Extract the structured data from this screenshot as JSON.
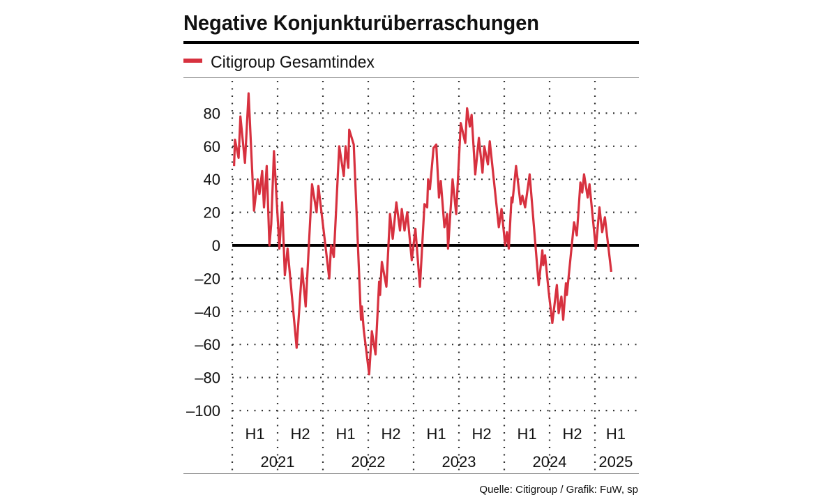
{
  "chart_data": {
    "type": "line",
    "title": "Negative Konjunkturüberraschungen",
    "source": "Quelle: Citigroup / Grafik: FuW, sp",
    "legend_position": "top-left",
    "grid": true,
    "colors": {
      "series": "#d7313f",
      "zero_line": "#000000",
      "grid": "#333333"
    },
    "ylim": [
      -100,
      80
    ],
    "y_ticks": [
      80,
      60,
      40,
      20,
      0,
      -20,
      -40,
      -60,
      -80,
      -100
    ],
    "y_tick_labels": [
      "80",
      "60",
      "40",
      "20",
      "0",
      "–20",
      "–40",
      "–60",
      "–80",
      "–100"
    ],
    "xlim": [
      2021.0,
      2025.46
    ],
    "x_boundaries": [
      2021.0,
      2021.5,
      2022.0,
      2022.5,
      2023.0,
      2023.5,
      2024.0,
      2024.5,
      2025.0
    ],
    "half_year_labels": [
      {
        "label": "H1",
        "center": 2021.25
      },
      {
        "label": "H2",
        "center": 2021.75
      },
      {
        "label": "H1",
        "center": 2022.25
      },
      {
        "label": "H2",
        "center": 2022.75
      },
      {
        "label": "H1",
        "center": 2023.25
      },
      {
        "label": "H2",
        "center": 2023.75
      },
      {
        "label": "H1",
        "center": 2024.25
      },
      {
        "label": "H2",
        "center": 2024.75
      },
      {
        "label": "H1",
        "center": 2025.23
      }
    ],
    "year_labels": [
      {
        "label": "2021",
        "center": 2021.5
      },
      {
        "label": "2022",
        "center": 2022.5
      },
      {
        "label": "2023",
        "center": 2023.5
      },
      {
        "label": "2024",
        "center": 2024.5
      },
      {
        "label": "2025",
        "center": 2025.23
      }
    ],
    "series": [
      {
        "name": "Citigroup Gesamtindex",
        "points": [
          [
            2021.02,
            48
          ],
          [
            2021.03,
            64
          ],
          [
            2021.07,
            53
          ],
          [
            2021.09,
            78
          ],
          [
            2021.14,
            50
          ],
          [
            2021.18,
            92
          ],
          [
            2021.24,
            21
          ],
          [
            2021.28,
            40
          ],
          [
            2021.3,
            31
          ],
          [
            2021.33,
            45
          ],
          [
            2021.35,
            23
          ],
          [
            2021.38,
            48
          ],
          [
            2021.41,
            0
          ],
          [
            2021.43,
            13
          ],
          [
            2021.46,
            57
          ],
          [
            2021.52,
            -2
          ],
          [
            2021.55,
            26
          ],
          [
            2021.58,
            -18
          ],
          [
            2021.61,
            -2
          ],
          [
            2021.71,
            -62
          ],
          [
            2021.77,
            -14
          ],
          [
            2021.81,
            -37
          ],
          [
            2021.88,
            37
          ],
          [
            2021.93,
            20
          ],
          [
            2021.95,
            36
          ],
          [
            2022.07,
            -20
          ],
          [
            2022.09,
            0
          ],
          [
            2022.12,
            -7
          ],
          [
            2022.18,
            60
          ],
          [
            2022.23,
            42
          ],
          [
            2022.25,
            60
          ],
          [
            2022.28,
            47
          ],
          [
            2022.29,
            70
          ],
          [
            2022.34,
            61
          ],
          [
            2022.42,
            -45
          ],
          [
            2022.43,
            -37
          ],
          [
            2022.45,
            -51
          ],
          [
            2022.51,
            -78
          ],
          [
            2022.54,
            -52
          ],
          [
            2022.58,
            -66
          ],
          [
            2022.62,
            -22
          ],
          [
            2022.63,
            -30
          ],
          [
            2022.65,
            -10
          ],
          [
            2022.7,
            -25
          ],
          [
            2022.74,
            19
          ],
          [
            2022.77,
            4
          ],
          [
            2022.81,
            26
          ],
          [
            2022.85,
            9
          ],
          [
            2022.87,
            22
          ],
          [
            2022.9,
            9
          ],
          [
            2022.93,
            20
          ],
          [
            2022.98,
            -9
          ],
          [
            2023.02,
            10
          ],
          [
            2023.07,
            -25
          ],
          [
            2023.12,
            25
          ],
          [
            2023.15,
            23
          ],
          [
            2023.16,
            40
          ],
          [
            2023.18,
            34
          ],
          [
            2023.22,
            59
          ],
          [
            2023.25,
            61
          ],
          [
            2023.28,
            29
          ],
          [
            2023.3,
            39
          ],
          [
            2023.34,
            11
          ],
          [
            2023.37,
            19
          ],
          [
            2023.38,
            -2
          ],
          [
            2023.43,
            40
          ],
          [
            2023.47,
            19
          ],
          [
            2023.52,
            74
          ],
          [
            2023.57,
            62
          ],
          [
            2023.59,
            83
          ],
          [
            2023.62,
            72
          ],
          [
            2023.64,
            79
          ],
          [
            2023.68,
            43
          ],
          [
            2023.72,
            65
          ],
          [
            2023.76,
            44
          ],
          [
            2023.78,
            60
          ],
          [
            2023.82,
            49
          ],
          [
            2023.84,
            63
          ],
          [
            2023.94,
            11
          ],
          [
            2023.97,
            22
          ],
          [
            2024.01,
            0
          ],
          [
            2024.03,
            8
          ],
          [
            2024.05,
            -2
          ],
          [
            2024.08,
            29
          ],
          [
            2024.09,
            26
          ],
          [
            2024.13,
            48
          ],
          [
            2024.18,
            25
          ],
          [
            2024.2,
            30
          ],
          [
            2024.23,
            23
          ],
          [
            2024.28,
            43
          ],
          [
            2024.38,
            -24
          ],
          [
            2024.42,
            -3
          ],
          [
            2024.43,
            -12
          ],
          [
            2024.45,
            -6
          ],
          [
            2024.49,
            -28
          ],
          [
            2024.53,
            -47
          ],
          [
            2024.58,
            -24
          ],
          [
            2024.6,
            -41
          ],
          [
            2024.63,
            -31
          ],
          [
            2024.65,
            -45
          ],
          [
            2024.68,
            -23
          ],
          [
            2024.69,
            -30
          ],
          [
            2024.77,
            14
          ],
          [
            2024.8,
            6
          ],
          [
            2024.84,
            38
          ],
          [
            2024.86,
            32
          ],
          [
            2024.88,
            43
          ],
          [
            2024.92,
            29
          ],
          [
            2024.94,
            37
          ],
          [
            2025.01,
            -2
          ],
          [
            2025.05,
            23
          ],
          [
            2025.08,
            8
          ],
          [
            2025.11,
            17
          ],
          [
            2025.18,
            -16
          ]
        ]
      }
    ]
  }
}
